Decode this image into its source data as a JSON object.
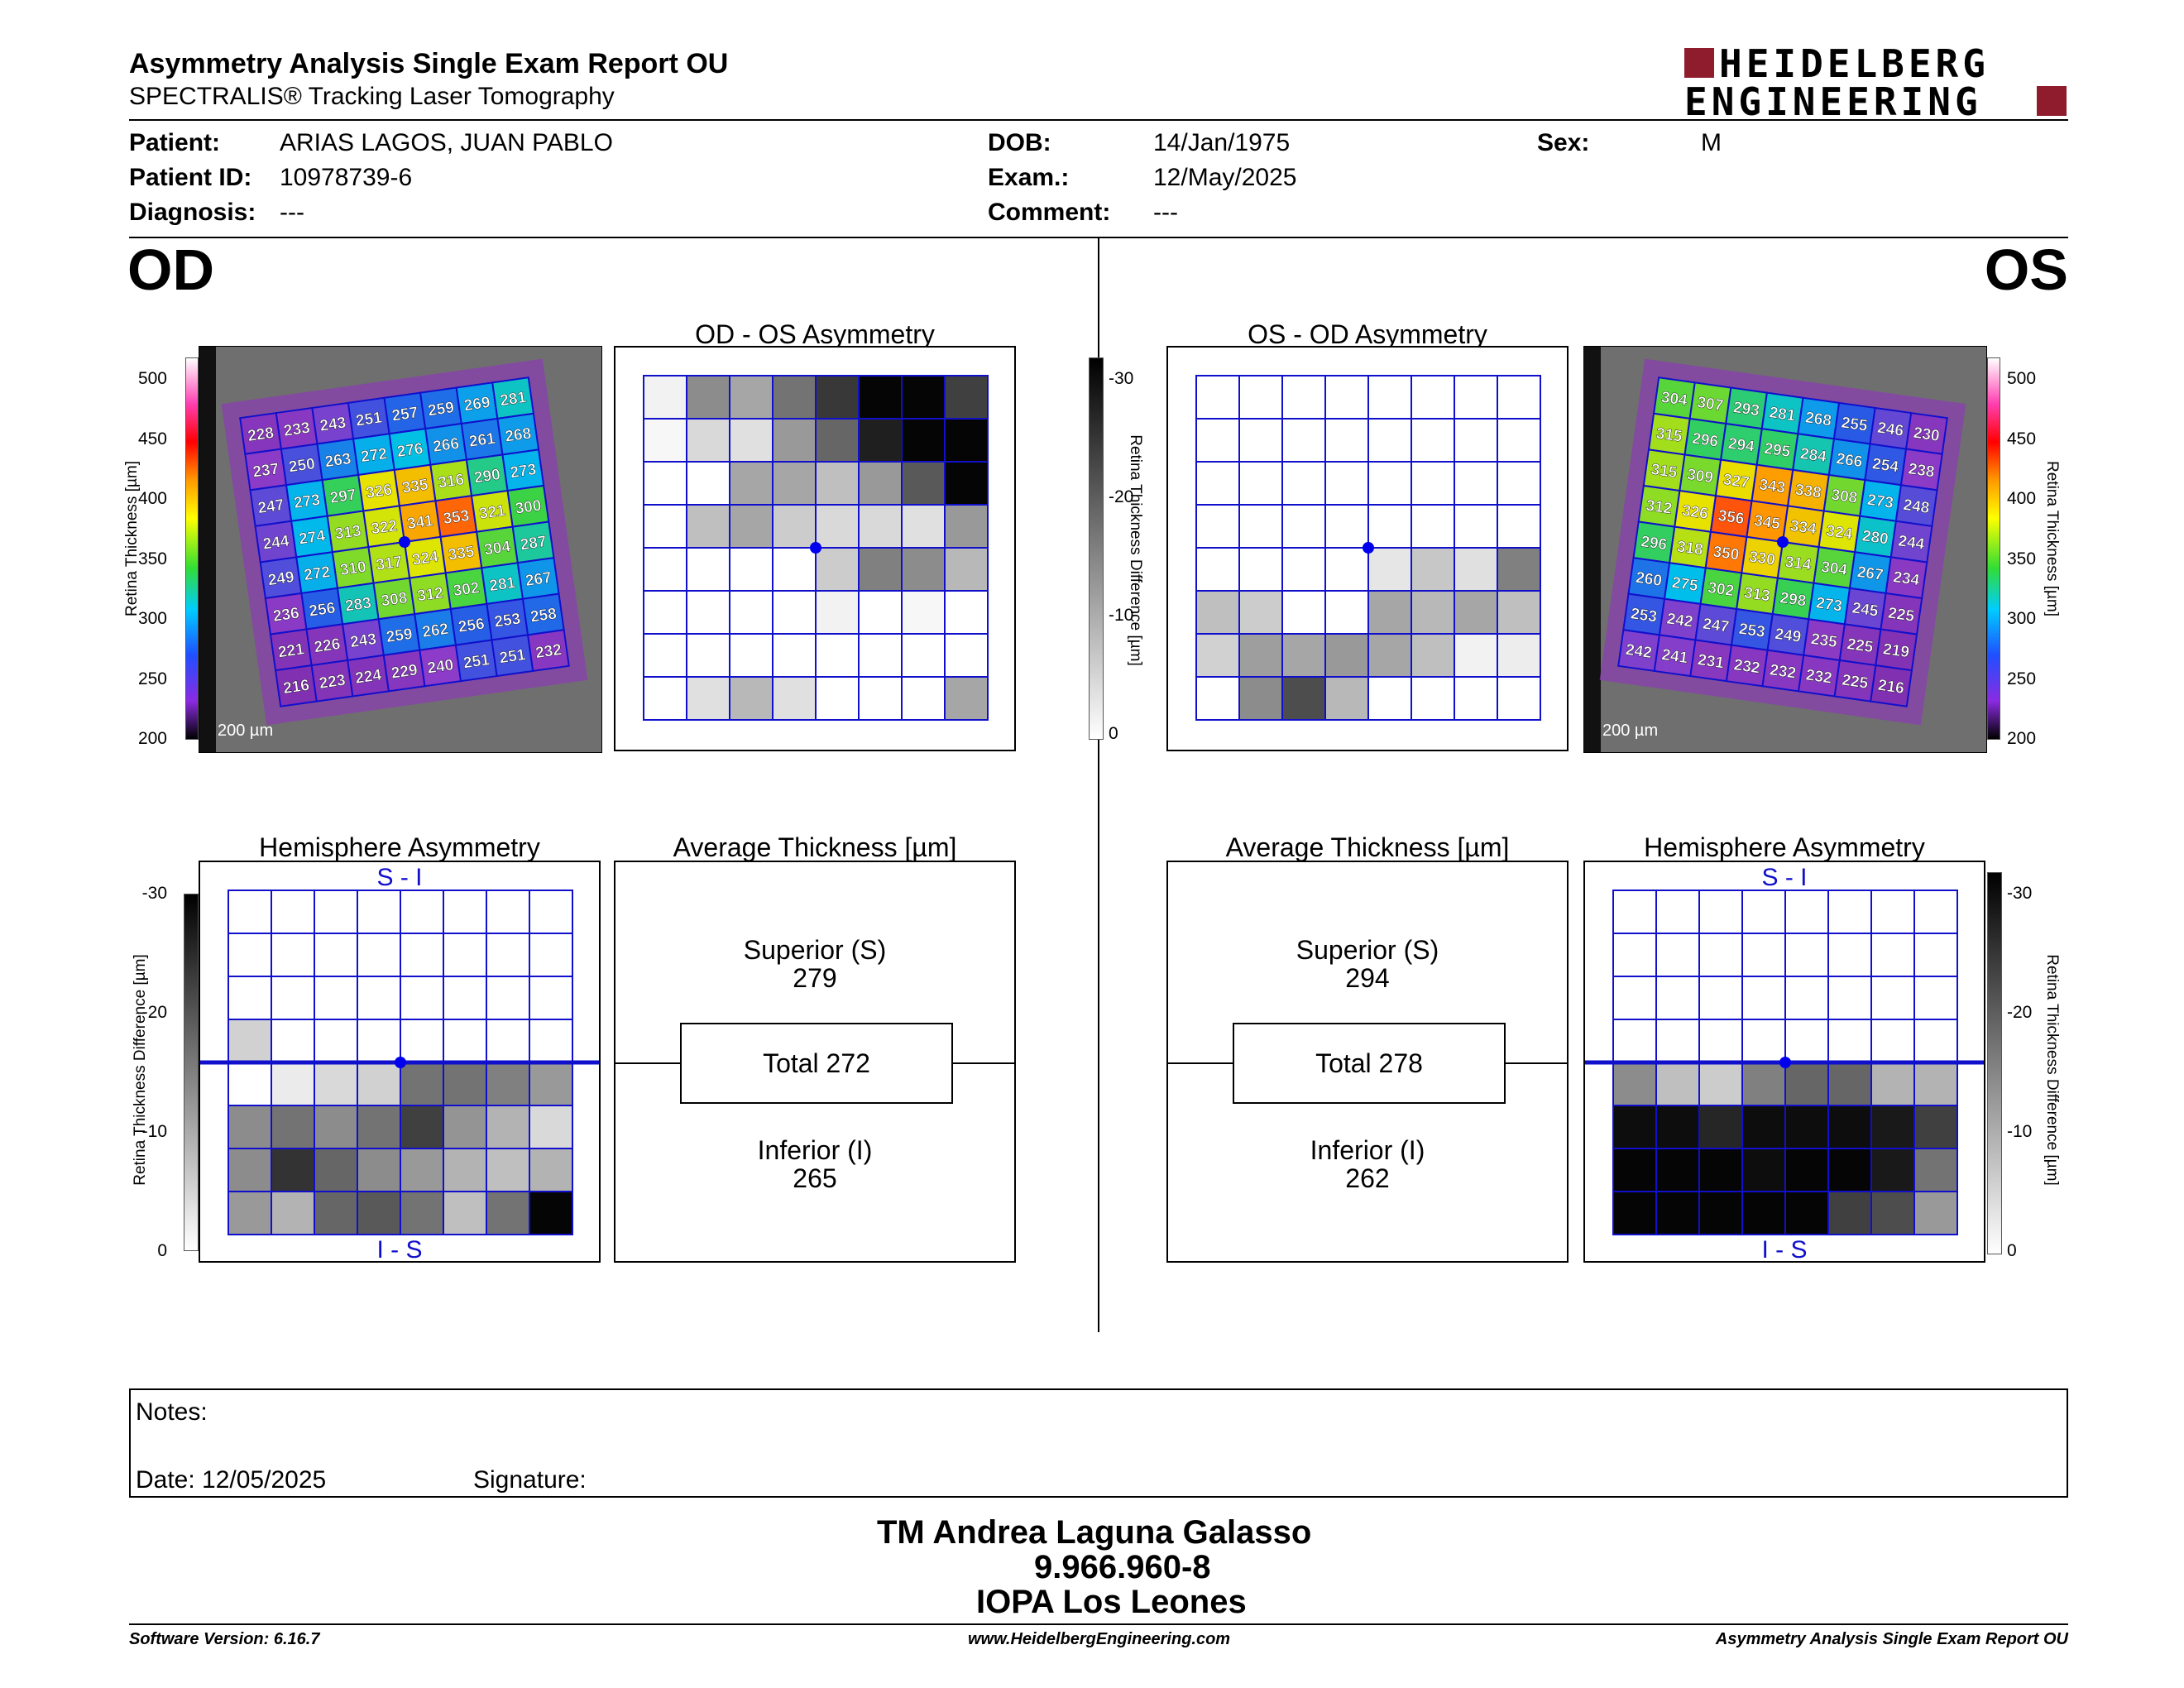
{
  "header": {
    "title": "Asymmetry Analysis Single Exam Report OU",
    "subtitle": "SPECTRALIS® Tracking Laser Tomography",
    "logo_line1": "HEIDELBERG",
    "logo_line2": "ENGINEERING"
  },
  "patient": {
    "patient_label": "Patient:",
    "patient_value": "ARIAS LAGOS, JUAN PABLO",
    "id_label": "Patient ID:",
    "id_value": "10978739-6",
    "diag_label": "Diagnosis:",
    "diag_value": "---",
    "dob_label": "DOB:",
    "dob_value": "14/Jan/1975",
    "exam_label": "Exam.:",
    "exam_value": "12/May/2025",
    "comment_label": "Comment:",
    "comment_value": "---",
    "sex_label": "Sex:",
    "sex_value": "M"
  },
  "eyes": {
    "od": "OD",
    "os": "OS"
  },
  "titles": {
    "od_os": "OD - OS Asymmetry",
    "os_od": "OS - OD Asymmetry",
    "hemi": "Hemisphere Asymmetry",
    "avg": "Average Thickness [µm]",
    "si": "S - I",
    "is": "I - S"
  },
  "scales": {
    "thickness_label": "Retina  Thickness [µm]",
    "thickness_ticks": [
      "500",
      "450",
      "400",
      "350",
      "300",
      "250",
      "200"
    ],
    "diff_label": "Retina Thickness Difference [µm]",
    "diff_ticks": [
      "-30",
      "-20",
      "-10",
      "0"
    ],
    "scalebar": "200 µm"
  },
  "thickness_colors": [
    "#ffffff",
    "#ff3fb0",
    "#ff0000",
    "#ff9900",
    "#ffff00",
    "#33dd33",
    "#00ccff",
    "#1f4fff",
    "#8a2be2",
    "#000000"
  ],
  "od_thickness": [
    [
      228,
      233,
      243,
      251,
      257,
      259,
      269,
      281
    ],
    [
      237,
      250,
      263,
      272,
      276,
      266,
      261,
      268
    ],
    [
      247,
      273,
      297,
      326,
      335,
      316,
      290,
      273
    ],
    [
      244,
      274,
      313,
      322,
      341,
      353,
      321,
      300
    ],
    [
      249,
      272,
      310,
      317,
      324,
      335,
      304,
      287
    ],
    [
      236,
      256,
      283,
      308,
      312,
      302,
      281,
      267
    ],
    [
      221,
      226,
      243,
      259,
      262,
      256,
      253,
      258
    ],
    [
      216,
      223,
      224,
      229,
      240,
      251,
      251,
      232
    ]
  ],
  "os_thickness": [
    [
      304,
      307,
      293,
      281,
      268,
      255,
      246,
      230
    ],
    [
      315,
      296,
      294,
      295,
      284,
      266,
      254,
      238
    ],
    [
      315,
      309,
      327,
      343,
      338,
      308,
      273,
      248
    ],
    [
      312,
      326,
      356,
      345,
      334,
      324,
      280,
      244
    ],
    [
      296,
      318,
      350,
      330,
      314,
      304,
      267,
      234
    ],
    [
      260,
      275,
      302,
      313,
      298,
      273,
      245,
      225
    ],
    [
      253,
      242,
      247,
      253,
      249,
      235,
      225,
      219
    ],
    [
      242,
      241,
      231,
      232,
      232,
      232,
      225,
      216
    ]
  ],
  "od_os_asym": [
    [
      0.05,
      0.45,
      0.35,
      0.55,
      0.78,
      0.98,
      0.98,
      0.75
    ],
    [
      0.03,
      0.15,
      0.12,
      0.4,
      0.6,
      0.88,
      0.98,
      0.98
    ],
    [
      0.0,
      0.0,
      0.35,
      0.35,
      0.25,
      0.4,
      0.65,
      0.98
    ],
    [
      0.0,
      0.25,
      0.35,
      0.2,
      0.15,
      0.15,
      0.12,
      0.4
    ],
    [
      0.0,
      0.0,
      0.0,
      0.0,
      0.2,
      0.5,
      0.45,
      0.28
    ],
    [
      0.0,
      0.0,
      0.0,
      0.0,
      0.05,
      0.0,
      0.03,
      0.0
    ],
    [
      0.0,
      0.0,
      0.0,
      0.0,
      0.0,
      0.0,
      0.0,
      0.0
    ],
    [
      0.0,
      0.12,
      0.28,
      0.12,
      0.0,
      0.0,
      0.0,
      0.35
    ]
  ],
  "os_od_asym": [
    [
      0,
      0,
      0,
      0,
      0,
      0,
      0,
      0
    ],
    [
      0,
      0,
      0,
      0,
      0,
      0,
      0,
      0
    ],
    [
      0,
      0,
      0,
      0,
      0,
      0,
      0,
      0
    ],
    [
      0,
      0,
      0,
      0,
      0,
      0,
      0,
      0
    ],
    [
      0,
      0,
      0,
      0,
      0.1,
      0.22,
      0.12,
      0.5
    ],
    [
      0.25,
      0.2,
      0.0,
      0.0,
      0.35,
      0.28,
      0.35,
      0.25
    ],
    [
      0.18,
      0.38,
      0.35,
      0.4,
      0.35,
      0.25,
      0.05,
      0.07
    ],
    [
      0.0,
      0.45,
      0.7,
      0.28,
      0.0,
      0.0,
      0.0,
      0.0
    ]
  ],
  "od_hemi": [
    [
      0,
      0,
      0,
      0,
      0,
      0,
      0,
      0
    ],
    [
      0,
      0,
      0,
      0,
      0,
      0,
      0,
      0
    ],
    [
      0,
      0,
      0,
      0,
      0,
      0,
      0,
      0
    ],
    [
      0.18,
      0,
      0,
      0,
      0,
      0,
      0,
      0
    ],
    [
      0.0,
      0.08,
      0.15,
      0.18,
      0.55,
      0.55,
      0.5,
      0.4
    ],
    [
      0.45,
      0.55,
      0.45,
      0.55,
      0.75,
      0.42,
      0.3,
      0.15
    ],
    [
      0.45,
      0.8,
      0.6,
      0.45,
      0.4,
      0.3,
      0.25,
      0.3
    ],
    [
      0.4,
      0.3,
      0.6,
      0.65,
      0.55,
      0.25,
      0.55,
      0.98
    ]
  ],
  "os_hemi": [
    [
      0,
      0,
      0,
      0,
      0,
      0,
      0,
      0
    ],
    [
      0,
      0,
      0,
      0,
      0,
      0,
      0,
      0
    ],
    [
      0,
      0,
      0,
      0,
      0,
      0,
      0,
      0
    ],
    [
      0,
      0,
      0,
      0,
      0,
      0,
      0,
      0
    ],
    [
      0.45,
      0.25,
      0.2,
      0.5,
      0.6,
      0.6,
      0.3,
      0.3
    ],
    [
      0.95,
      0.95,
      0.85,
      0.95,
      0.95,
      0.95,
      0.9,
      0.75
    ],
    [
      0.98,
      0.98,
      0.98,
      0.95,
      0.98,
      0.98,
      0.9,
      0.55
    ],
    [
      0.98,
      0.98,
      0.98,
      0.98,
      0.98,
      0.75,
      0.7,
      0.4
    ]
  ],
  "avg_od": {
    "sup_label": "Superior (S)",
    "sup_value": "279",
    "total": "Total 272",
    "inf_label": "Inferior (I)",
    "inf_value": "265"
  },
  "avg_os": {
    "sup_label": "Superior (S)",
    "sup_value": "294",
    "total": "Total 278",
    "inf_label": "Inferior (I)",
    "inf_value": "262"
  },
  "notes": {
    "notes_label": "Notes:",
    "date_label": "Date: 12/05/2025",
    "signature_label": "Signature:"
  },
  "signer": {
    "name": "TM Andrea Laguna Galasso",
    "rut": "9.966.960-8",
    "org": "IOPA Los Leones"
  },
  "footer": {
    "version": "Software Version: 6.16.7",
    "website": "www.HeidelbergEngineering.com",
    "report": "Asymmetry Analysis Single Exam Report OU"
  }
}
